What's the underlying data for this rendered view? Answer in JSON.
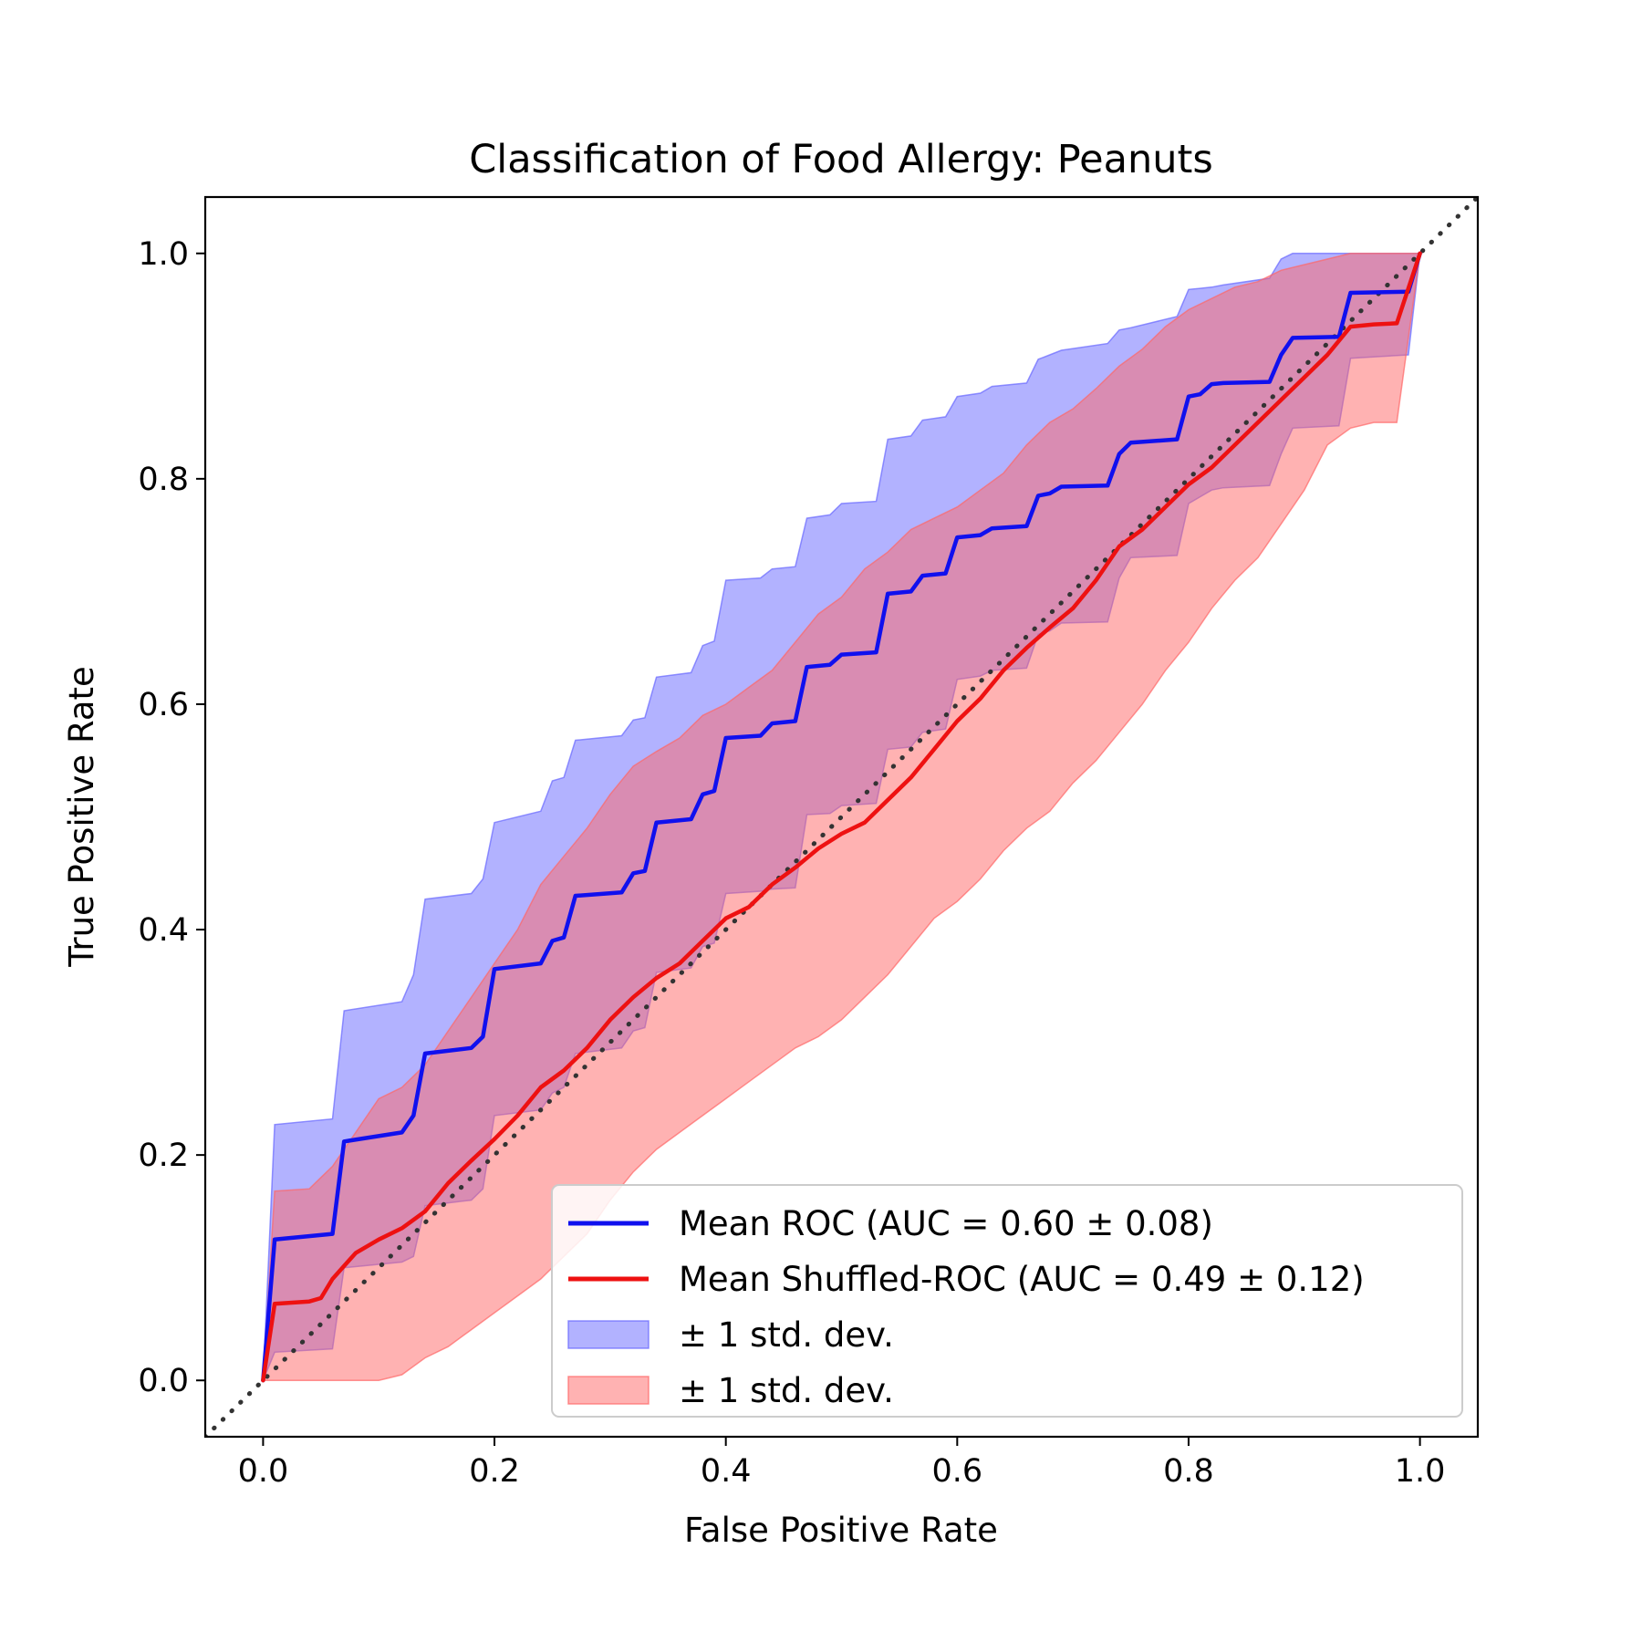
{
  "chart_data": {
    "type": "line",
    "title": "Classification of Food Allergy: Peanuts",
    "xlabel": "False Positive Rate",
    "ylabel": "True Positive Rate",
    "xlim": [
      -0.05,
      1.05
    ],
    "ylim": [
      -0.05,
      1.05
    ],
    "xticks": [
      0.0,
      0.2,
      0.4,
      0.6,
      0.8,
      1.0
    ],
    "yticks": [
      0.0,
      0.2,
      0.4,
      0.6,
      0.8,
      1.0
    ],
    "xtick_labels": [
      "0.0",
      "0.2",
      "0.4",
      "0.6",
      "0.8",
      "1.0"
    ],
    "ytick_labels": [
      "0.0",
      "0.2",
      "0.4",
      "0.6",
      "0.8",
      "1.0"
    ],
    "grid": false,
    "legend_position": "lower-right",
    "diagonal": {
      "x": [
        -0.05,
        1.05
      ],
      "y": [
        -0.05,
        1.05
      ],
      "style": "dotted",
      "color": "#333333"
    },
    "series": [
      {
        "name": "Mean ROC (AUC = 0.60 ± 0.08)",
        "color": "#1010ee",
        "band_color": "#6666ff",
        "x": [
          0.0,
          0.01,
          0.06,
          0.07,
          0.12,
          0.13,
          0.14,
          0.18,
          0.19,
          0.2,
          0.24,
          0.25,
          0.26,
          0.27,
          0.31,
          0.32,
          0.33,
          0.34,
          0.37,
          0.38,
          0.39,
          0.4,
          0.43,
          0.44,
          0.46,
          0.47,
          0.49,
          0.5,
          0.53,
          0.54,
          0.56,
          0.57,
          0.59,
          0.6,
          0.62,
          0.63,
          0.66,
          0.67,
          0.68,
          0.69,
          0.73,
          0.74,
          0.75,
          0.79,
          0.8,
          0.81,
          0.82,
          0.83,
          0.87,
          0.88,
          0.89,
          0.93,
          0.94,
          0.99,
          1.0
        ],
        "y": [
          0.0,
          0.125,
          0.13,
          0.212,
          0.22,
          0.235,
          0.29,
          0.295,
          0.305,
          0.365,
          0.37,
          0.39,
          0.393,
          0.43,
          0.433,
          0.45,
          0.452,
          0.495,
          0.498,
          0.52,
          0.523,
          0.57,
          0.572,
          0.583,
          0.585,
          0.633,
          0.635,
          0.644,
          0.646,
          0.698,
          0.7,
          0.714,
          0.716,
          0.748,
          0.75,
          0.756,
          0.758,
          0.785,
          0.787,
          0.793,
          0.794,
          0.822,
          0.832,
          0.835,
          0.873,
          0.875,
          0.884,
          0.885,
          0.886,
          0.91,
          0.925,
          0.926,
          0.965,
          0.966,
          1.0
        ],
        "band_upper": [
          0.0,
          0.227,
          0.232,
          0.328,
          0.336,
          0.36,
          0.427,
          0.432,
          0.445,
          0.495,
          0.505,
          0.532,
          0.535,
          0.568,
          0.572,
          0.586,
          0.588,
          0.624,
          0.628,
          0.652,
          0.656,
          0.71,
          0.712,
          0.72,
          0.722,
          0.765,
          0.768,
          0.778,
          0.78,
          0.835,
          0.838,
          0.852,
          0.855,
          0.873,
          0.876,
          0.882,
          0.885,
          0.906,
          0.91,
          0.914,
          0.92,
          0.932,
          0.934,
          0.944,
          0.968,
          0.969,
          0.97,
          0.972,
          0.978,
          0.995,
          1.0,
          1.0,
          1.0,
          1.0,
          1.0
        ],
        "band_lower": [
          0.0,
          0.025,
          0.028,
          0.1,
          0.105,
          0.11,
          0.155,
          0.16,
          0.17,
          0.235,
          0.24,
          0.255,
          0.26,
          0.29,
          0.295,
          0.31,
          0.313,
          0.362,
          0.366,
          0.385,
          0.388,
          0.432,
          0.434,
          0.436,
          0.437,
          0.502,
          0.503,
          0.51,
          0.512,
          0.56,
          0.562,
          0.575,
          0.578,
          0.622,
          0.625,
          0.63,
          0.632,
          0.662,
          0.665,
          0.672,
          0.673,
          0.712,
          0.73,
          0.732,
          0.778,
          0.784,
          0.79,
          0.792,
          0.794,
          0.822,
          0.845,
          0.847,
          0.907,
          0.91,
          1.0
        ]
      },
      {
        "name": "Mean Shuffled-ROC (AUC = 0.49 ± 0.12)",
        "color": "#ee1111",
        "band_color": "#ff6666",
        "x": [
          0.0,
          0.01,
          0.04,
          0.05,
          0.06,
          0.08,
          0.1,
          0.12,
          0.14,
          0.16,
          0.18,
          0.2,
          0.22,
          0.24,
          0.26,
          0.28,
          0.3,
          0.32,
          0.34,
          0.36,
          0.38,
          0.4,
          0.42,
          0.44,
          0.46,
          0.48,
          0.5,
          0.52,
          0.54,
          0.56,
          0.58,
          0.6,
          0.62,
          0.64,
          0.66,
          0.68,
          0.7,
          0.72,
          0.74,
          0.76,
          0.78,
          0.8,
          0.82,
          0.84,
          0.86,
          0.88,
          0.9,
          0.92,
          0.94,
          0.96,
          0.98,
          1.0
        ],
        "y": [
          0.0,
          0.068,
          0.07,
          0.073,
          0.09,
          0.113,
          0.125,
          0.135,
          0.15,
          0.175,
          0.195,
          0.214,
          0.235,
          0.26,
          0.275,
          0.295,
          0.32,
          0.34,
          0.357,
          0.37,
          0.39,
          0.41,
          0.42,
          0.44,
          0.455,
          0.472,
          0.485,
          0.495,
          0.515,
          0.535,
          0.56,
          0.585,
          0.605,
          0.63,
          0.65,
          0.668,
          0.685,
          0.71,
          0.74,
          0.755,
          0.775,
          0.795,
          0.81,
          0.83,
          0.85,
          0.87,
          0.89,
          0.91,
          0.935,
          0.937,
          0.938,
          1.0
        ],
        "band_upper": [
          0.0,
          0.168,
          0.17,
          0.18,
          0.19,
          0.22,
          0.25,
          0.26,
          0.28,
          0.31,
          0.34,
          0.37,
          0.4,
          0.44,
          0.465,
          0.49,
          0.52,
          0.545,
          0.558,
          0.57,
          0.59,
          0.6,
          0.615,
          0.63,
          0.655,
          0.68,
          0.695,
          0.72,
          0.735,
          0.755,
          0.765,
          0.775,
          0.79,
          0.805,
          0.83,
          0.85,
          0.862,
          0.88,
          0.9,
          0.915,
          0.935,
          0.95,
          0.96,
          0.97,
          0.975,
          0.985,
          0.99,
          0.995,
          1.0,
          1.0,
          1.0,
          1.0
        ],
        "band_lower": [
          0.0,
          0.0,
          0.0,
          0.0,
          0.0,
          0.0,
          0.0,
          0.005,
          0.02,
          0.03,
          0.045,
          0.06,
          0.075,
          0.09,
          0.11,
          0.13,
          0.16,
          0.185,
          0.205,
          0.22,
          0.235,
          0.25,
          0.265,
          0.28,
          0.295,
          0.305,
          0.32,
          0.34,
          0.36,
          0.385,
          0.41,
          0.425,
          0.445,
          0.47,
          0.49,
          0.505,
          0.53,
          0.55,
          0.575,
          0.6,
          0.63,
          0.655,
          0.685,
          0.71,
          0.73,
          0.76,
          0.79,
          0.83,
          0.845,
          0.85,
          0.85,
          1.0
        ]
      }
    ],
    "legend": [
      {
        "label": "Mean ROC (AUC = 0.60 ± 0.08)",
        "kind": "line",
        "color": "#1010ee"
      },
      {
        "label": "Mean Shuffled-ROC (AUC = 0.49 ± 0.12)",
        "kind": "line",
        "color": "#ee1111"
      },
      {
        "label": "± 1 std. dev.",
        "kind": "patch",
        "color": "#6666ff"
      },
      {
        "label": "± 1 std. dev.",
        "kind": "patch",
        "color": "#ff6666"
      }
    ]
  }
}
